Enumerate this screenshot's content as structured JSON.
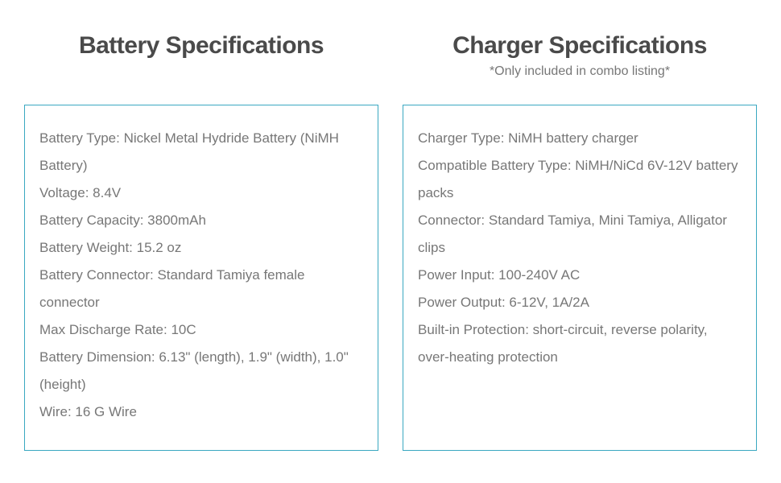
{
  "battery": {
    "title": "Battery Specifications",
    "specs": [
      "Battery Type: Nickel Metal Hydride Battery (NiMH Battery)",
      "Voltage: 8.4V",
      "Battery Capacity: 3800mAh",
      "Battery Weight: 15.2 oz",
      "Battery Connector: Standard Tamiya female connector",
      "Max Discharge Rate: 10C",
      "Battery Dimension: 6.13\" (length), 1.9\" (width), 1.0\" (height)",
      "Wire: 16 G Wire"
    ]
  },
  "charger": {
    "title": "Charger Specifications",
    "subtitle": "*Only included in combo listing*",
    "specs": [
      "Charger Type: NiMH battery charger",
      "Compatible Battery Type: NiMH/NiCd 6V-12V battery packs",
      "Connector: Standard Tamiya, Mini Tamiya, Alligator clips",
      "Power Input: 100-240V AC",
      "Power Output: 6-12V, 1A/2A",
      "Built-in Protection: short-circuit, reverse polarity, over-heating protection"
    ]
  },
  "colors": {
    "border": "#3aa8c1",
    "title_text": "#4a4a4a",
    "body_text": "#777777",
    "background": "#ffffff"
  }
}
